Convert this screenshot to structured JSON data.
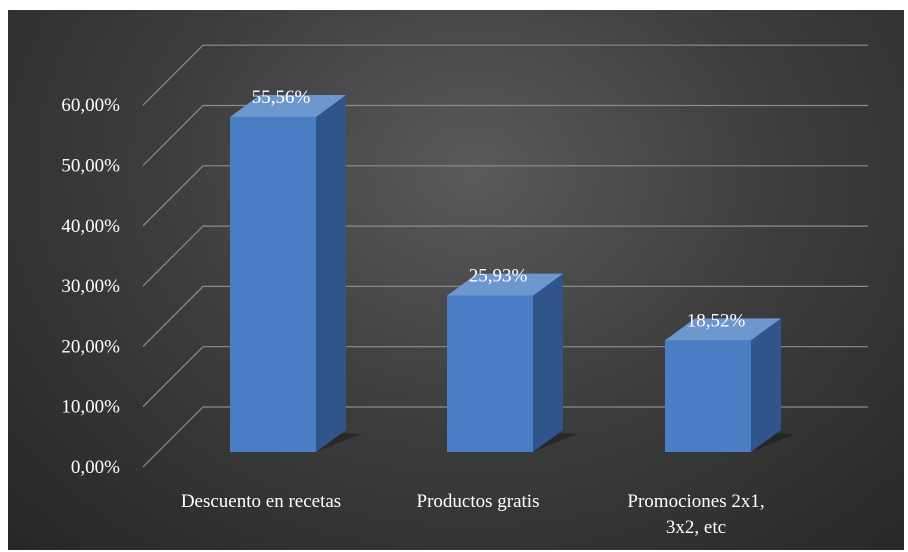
{
  "chart_data": {
    "type": "bar",
    "style": "3d-column",
    "categories": [
      [
        "Descuento en recetas"
      ],
      [
        "Productos gratis"
      ],
      [
        "Promociones 2x1,",
        "3x2, etc"
      ]
    ],
    "values": [
      55.56,
      25.93,
      18.52
    ],
    "data_labels": [
      "55,56%",
      "25,93%",
      "18,52%"
    ],
    "yticks": [
      {
        "value": 0,
        "label": "0,00%"
      },
      {
        "value": 10,
        "label": "10,00%"
      },
      {
        "value": 20,
        "label": "20,00%"
      },
      {
        "value": 30,
        "label": "30,00%"
      },
      {
        "value": 40,
        "label": "40,00%"
      },
      {
        "value": 50,
        "label": "50,00%"
      },
      {
        "value": 60,
        "label": "60,00%"
      }
    ],
    "ylim": [
      0,
      60
    ],
    "title": "",
    "xlabel": "",
    "ylabel": "",
    "grid": true,
    "legend": "none",
    "colors": {
      "bar_front": "#4a7ec4",
      "bar_side": "#30558a",
      "bar_top": "#6f97cf",
      "background": "#3a3a3a",
      "grid": "#8c8c8c",
      "text": "#ffffff"
    }
  }
}
